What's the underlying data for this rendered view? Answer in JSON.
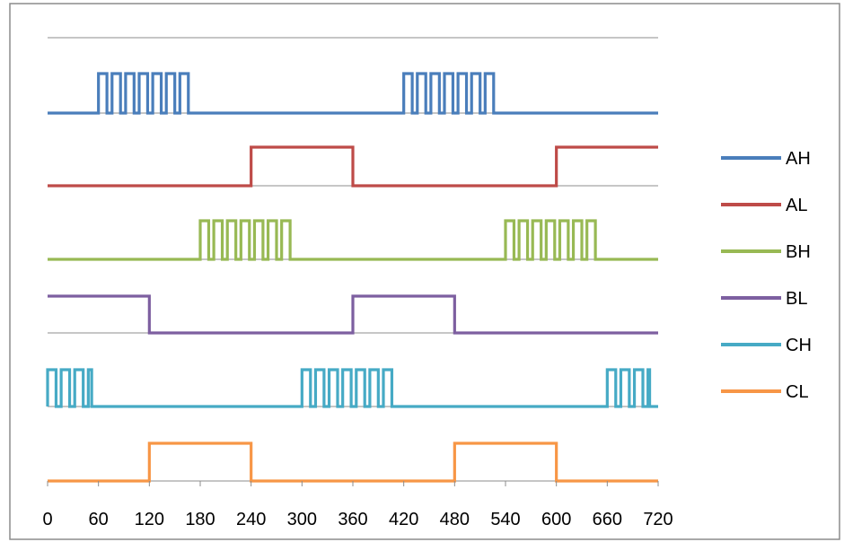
{
  "chart_data": {
    "type": "line",
    "title": "",
    "xlabel": "",
    "ylabel": "",
    "xlim": [
      0,
      720
    ],
    "x_ticks": [
      0,
      60,
      120,
      180,
      240,
      300,
      360,
      420,
      480,
      540,
      600,
      660,
      720
    ],
    "x_tick_labels": [
      "0",
      "60",
      "120",
      "180",
      "240",
      "300",
      "360",
      "420",
      "480",
      "540",
      "600",
      "660",
      "720"
    ],
    "grid": "horizontal gridline at top of plot; each channel drawn as a stacked step trace above a baseline",
    "legend_position": "right",
    "series": [
      {
        "name": "AH",
        "color": "#4a7ebb",
        "pwm_bursts": [
          [
            60,
            172
          ],
          [
            420,
            532
          ]
        ],
        "pwm_period": 16,
        "high_time": 10,
        "initial_level": 0
      },
      {
        "name": "AL",
        "color": "#be4b48",
        "initial_level": 0,
        "transitions": [
          [
            240,
            1
          ],
          [
            360,
            0
          ],
          [
            600,
            1
          ]
        ]
      },
      {
        "name": "BH",
        "color": "#98b954",
        "pwm_bursts": [
          [
            180,
            292
          ],
          [
            540,
            652
          ]
        ],
        "pwm_period": 16,
        "high_time": 10,
        "initial_level": 0
      },
      {
        "name": "BL",
        "color": "#7d5fa0",
        "initial_level": 1,
        "transitions": [
          [
            120,
            0
          ],
          [
            360,
            1
          ],
          [
            480,
            0
          ]
        ]
      },
      {
        "name": "CH",
        "color": "#46aac5",
        "pwm_bursts": [
          [
            0,
            52
          ],
          [
            300,
            412
          ],
          [
            660,
            710
          ]
        ],
        "pwm_period": 16,
        "high_time": 10,
        "initial_level": 0
      },
      {
        "name": "CL",
        "color": "#f79646",
        "initial_level": 0,
        "transitions": [
          [
            120,
            1
          ],
          [
            240,
            0
          ],
          [
            480,
            1
          ],
          [
            600,
            0
          ]
        ]
      }
    ]
  }
}
